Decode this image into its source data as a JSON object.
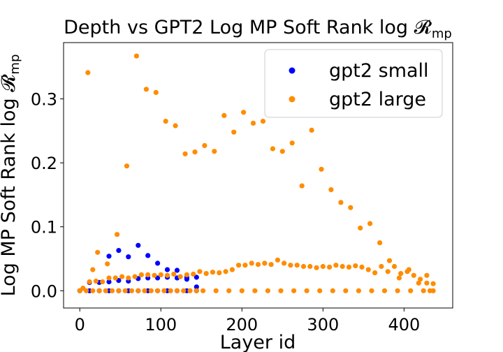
{
  "chart_data": {
    "type": "scatter",
    "title": "Depth vs GPT2 Log MP Soft Rank log 𝓡",
    "title_subscript": "mp",
    "xlabel": "Layer id",
    "ylabel": "Log MP Soft Rank log 𝓡",
    "ylabel_subscript": "mp",
    "xlim": [
      -20,
      460
    ],
    "ylim": [
      -0.027,
      0.388
    ],
    "xticks": [
      0,
      100,
      200,
      300,
      400
    ],
    "yticks": [
      0.0,
      0.1,
      0.2,
      0.3
    ],
    "ytick_labels": [
      "0.0",
      "0.1",
      "0.2",
      "0.3"
    ],
    "grid": false,
    "legend_position": "top-right",
    "series": [
      {
        "name": "gpt2 small",
        "color": "#0000ff",
        "points": [
          [
            0,
            0.0
          ],
          [
            12,
            0.0
          ],
          [
            24,
            0.0
          ],
          [
            36,
            0.0
          ],
          [
            48,
            0.0
          ],
          [
            60,
            0.0
          ],
          [
            72,
            0.0
          ],
          [
            84,
            0.0
          ],
          [
            96,
            0.0
          ],
          [
            108,
            0.0
          ],
          [
            120,
            0.0
          ],
          [
            132,
            0.0
          ],
          [
            144,
            0.0
          ],
          [
            12,
            0.013
          ],
          [
            24,
            0.013
          ],
          [
            36,
            0.054
          ],
          [
            48,
            0.063
          ],
          [
            60,
            0.053
          ],
          [
            72,
            0.071
          ],
          [
            84,
            0.055
          ],
          [
            96,
            0.043
          ],
          [
            108,
            0.033
          ],
          [
            120,
            0.032
          ],
          [
            132,
            0.021
          ],
          [
            144,
            0.021
          ],
          [
            36,
            0.014
          ],
          [
            48,
            0.016
          ],
          [
            60,
            0.015
          ],
          [
            72,
            0.019
          ],
          [
            84,
            0.02
          ],
          [
            96,
            0.02
          ],
          [
            108,
            0.021
          ],
          [
            120,
            0.02
          ],
          [
            132,
            0.018
          ],
          [
            144,
            0.006
          ]
        ]
      },
      {
        "name": "gpt2 large",
        "color": "#ff8c00",
        "points": [
          [
            0,
            0.0
          ],
          [
            8,
            0.0
          ],
          [
            16,
            0.0
          ],
          [
            24,
            0.0
          ],
          [
            32,
            0.0
          ],
          [
            40,
            0.0
          ],
          [
            48,
            0.0
          ],
          [
            56,
            0.0
          ],
          [
            64,
            0.0
          ],
          [
            72,
            0.0
          ],
          [
            80,
            0.0
          ],
          [
            88,
            0.0
          ],
          [
            96,
            0.0
          ],
          [
            104,
            0.0
          ],
          [
            112,
            0.0
          ],
          [
            120,
            0.0
          ],
          [
            128,
            0.0
          ],
          [
            136,
            0.0
          ],
          [
            144,
            0.0
          ],
          [
            152,
            0.0
          ],
          [
            168,
            0.0
          ],
          [
            184,
            0.0
          ],
          [
            200,
            0.0
          ],
          [
            216,
            0.0
          ],
          [
            232,
            0.0
          ],
          [
            248,
            0.0
          ],
          [
            264,
            0.0
          ],
          [
            280,
            0.0
          ],
          [
            296,
            0.0
          ],
          [
            312,
            0.0
          ],
          [
            328,
            0.0
          ],
          [
            344,
            0.0
          ],
          [
            360,
            0.0
          ],
          [
            376,
            0.0
          ],
          [
            392,
            0.0
          ],
          [
            408,
            0.0
          ],
          [
            424,
            0.0
          ],
          [
            432,
            0.0
          ],
          [
            436,
            0.0
          ],
          [
            4,
            0.004
          ],
          [
            12,
            0.014
          ],
          [
            20,
            0.015
          ],
          [
            28,
            0.014
          ],
          [
            36,
            0.02
          ],
          [
            44,
            0.02
          ],
          [
            52,
            0.022
          ],
          [
            60,
            0.02
          ],
          [
            68,
            0.022
          ],
          [
            76,
            0.025
          ],
          [
            84,
            0.025
          ],
          [
            92,
            0.024
          ],
          [
            100,
            0.025
          ],
          [
            108,
            0.024
          ],
          [
            116,
            0.026
          ],
          [
            124,
            0.022
          ],
          [
            132,
            0.025
          ],
          [
            140,
            0.026
          ],
          [
            148,
            0.03
          ],
          [
            156,
            0.027
          ],
          [
            164,
            0.029
          ],
          [
            172,
            0.028
          ],
          [
            180,
            0.03
          ],
          [
            188,
            0.033
          ],
          [
            196,
            0.04
          ],
          [
            204,
            0.04
          ],
          [
            212,
            0.043
          ],
          [
            220,
            0.041
          ],
          [
            228,
            0.043
          ],
          [
            236,
            0.041
          ],
          [
            244,
            0.048
          ],
          [
            252,
            0.043
          ],
          [
            260,
            0.04
          ],
          [
            268,
            0.04
          ],
          [
            276,
            0.038
          ],
          [
            284,
            0.038
          ],
          [
            292,
            0.036
          ],
          [
            300,
            0.038
          ],
          [
            308,
            0.037
          ],
          [
            316,
            0.04
          ],
          [
            324,
            0.038
          ],
          [
            332,
            0.037
          ],
          [
            340,
            0.039
          ],
          [
            348,
            0.037
          ],
          [
            356,
            0.033
          ],
          [
            364,
            0.028
          ],
          [
            372,
            0.038
          ],
          [
            380,
            0.03
          ],
          [
            388,
            0.038
          ],
          [
            396,
            0.027
          ],
          [
            404,
            0.03
          ],
          [
            412,
            0.024
          ],
          [
            420,
            0.018
          ],
          [
            428,
            0.024
          ],
          [
            436,
            0.011
          ],
          [
            10,
            0.341
          ],
          [
            16,
            0.033
          ],
          [
            22,
            0.06
          ],
          [
            34,
            0.042
          ],
          [
            46,
            0.088
          ],
          [
            58,
            0.195
          ],
          [
            70,
            0.367
          ],
          [
            82,
            0.315
          ],
          [
            94,
            0.31
          ],
          [
            106,
            0.265
          ],
          [
            118,
            0.258
          ],
          [
            130,
            0.214
          ],
          [
            142,
            0.217
          ],
          [
            154,
            0.227
          ],
          [
            166,
            0.218
          ],
          [
            178,
            0.274
          ],
          [
            190,
            0.248
          ],
          [
            202,
            0.279
          ],
          [
            214,
            0.262
          ],
          [
            226,
            0.265
          ],
          [
            238,
            0.222
          ],
          [
            250,
            0.218
          ],
          [
            262,
            0.231
          ],
          [
            274,
            0.164
          ],
          [
            286,
            0.251
          ],
          [
            298,
            0.19
          ],
          [
            310,
            0.158
          ],
          [
            322,
            0.138
          ],
          [
            334,
            0.13
          ],
          [
            346,
            0.098
          ],
          [
            358,
            0.105
          ],
          [
            370,
            0.075
          ],
          [
            382,
            0.047
          ],
          [
            394,
            0.02
          ],
          [
            406,
            0.033
          ],
          [
            418,
            0.012
          ],
          [
            428,
            0.012
          ]
        ]
      }
    ]
  }
}
